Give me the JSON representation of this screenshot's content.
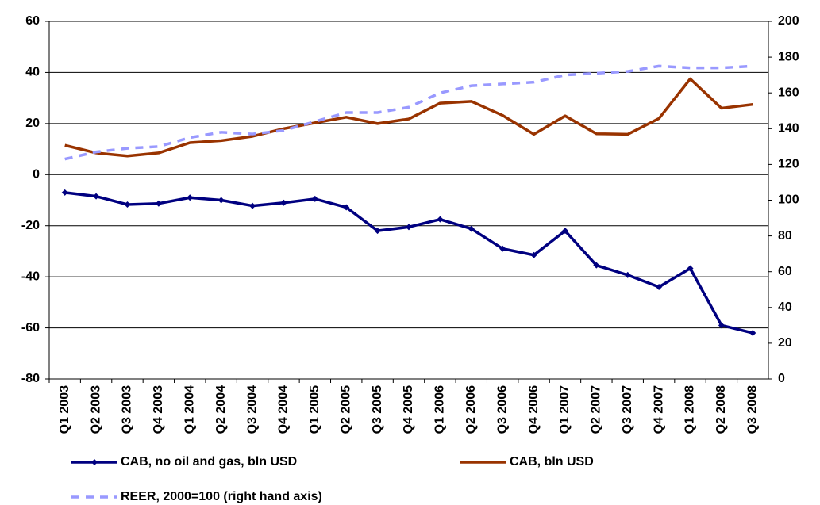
{
  "chart_data": {
    "type": "line",
    "categories": [
      "Q1 2003",
      "Q2 2003",
      "Q3 2003",
      "Q4 2003",
      "Q1 2004",
      "Q2 2004",
      "Q3 2004",
      "Q4 2004",
      "Q1 2005",
      "Q2 2005",
      "Q3 2005",
      "Q4 2005",
      "Q1 2006",
      "Q2 2006",
      "Q3 2006",
      "Q4 2006",
      "Q1 2007",
      "Q2 2007",
      "Q3 2007",
      "Q4 2007",
      "Q1 2008",
      "Q2 2008",
      "Q3 2008"
    ],
    "series": [
      {
        "name": "CAB, no oil and gas, bln USD",
        "color": "#000080",
        "marker": "diamond",
        "values": [
          -7,
          -8.5,
          -11.7,
          -11.3,
          -9,
          -10,
          -12.2,
          -11,
          -9.5,
          -12.8,
          -22,
          -20.5,
          -17.5,
          -21.2,
          -29,
          -31.5,
          -22,
          -35.5,
          -39.3,
          -44,
          -36.7,
          -59,
          -62
        ]
      },
      {
        "name": "CAB, bln USD",
        "color": "#993300",
        "values": [
          11.5,
          8.5,
          7.3,
          8.5,
          12.5,
          13.3,
          15,
          18,
          20.3,
          22.5,
          20,
          21.8,
          28,
          28.7,
          23.2,
          15.8,
          23,
          16,
          15.8,
          22,
          37.5,
          26,
          27.5
        ]
      },
      {
        "name": "REER, 2000=100 (right hand axis)",
        "color": "#9999ff",
        "dashed": true,
        "axis": "y2",
        "values": [
          123,
          127,
          129,
          130,
          135,
          138,
          137,
          139,
          144,
          149,
          149,
          152,
          160,
          164,
          165,
          166,
          170,
          171,
          172,
          175,
          174,
          174,
          175
        ]
      }
    ],
    "ylim": [
      -80,
      60
    ],
    "yticks": [
      -80,
      -60,
      -40,
      -20,
      0,
      20,
      40,
      60
    ],
    "y2lim": [
      0,
      200
    ],
    "y2ticks": [
      0,
      20,
      40,
      60,
      80,
      100,
      120,
      140,
      160,
      180,
      200
    ],
    "grid": true,
    "legend": "bottom"
  }
}
